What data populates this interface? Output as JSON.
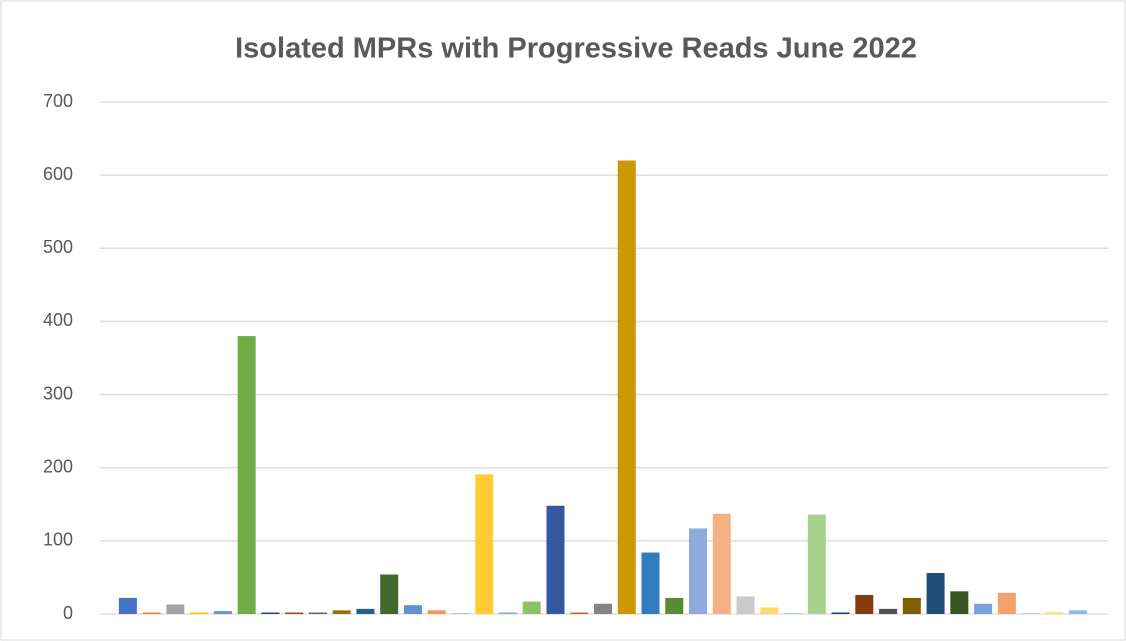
{
  "chart_data": {
    "type": "bar",
    "title": "Isolated MPRs with Progressive Reads June 2022",
    "categories": [
      null,
      null,
      null,
      null,
      null,
      null,
      null,
      null,
      null,
      null,
      null,
      null,
      null,
      null,
      null,
      null,
      null,
      null,
      null,
      null,
      null,
      null,
      null,
      null,
      null,
      null,
      null,
      null,
      null,
      null,
      null,
      null,
      null,
      null,
      null,
      null,
      null,
      null,
      null,
      null,
      null
    ],
    "values": [
      22,
      2,
      13,
      2,
      4,
      380,
      2,
      2,
      2,
      5,
      7,
      54,
      12,
      5,
      1,
      191,
      2,
      17,
      148,
      2,
      14,
      620,
      84,
      22,
      117,
      137,
      24,
      9,
      1,
      136,
      2,
      26,
      7,
      22,
      56,
      31,
      14,
      29,
      1,
      3,
      5
    ],
    "colors": [
      "#4472c4",
      "#ed7d31",
      "#a5a5a5",
      "#ffc000",
      "#5b9bd5",
      "#70ad47",
      "#264478",
      "#9e480e",
      "#636363",
      "#997300",
      "#255e91",
      "#43682b",
      "#698ed0",
      "#f1975a",
      "#b7b7b7",
      "#ffcd33",
      "#7cafdd",
      "#8cc168",
      "#335aa1",
      "#d26012",
      "#848484",
      "#cc9a00",
      "#327dc2",
      "#5a8a39",
      "#8faadc",
      "#f4b183",
      "#c9c9c9",
      "#ffd966",
      "#9dc3e6",
      "#a9d18e",
      "#203864",
      "#843c0c",
      "#525252",
      "#7f6000",
      "#1f4e79",
      "#375623",
      "#7aa0de",
      "#f4a16a",
      "#c0c0c0",
      "#ffe07a",
      "#8db8e8"
    ],
    "ylim": [
      0,
      700
    ],
    "yticks": [
      0,
      100,
      200,
      300,
      400,
      500,
      600,
      700
    ],
    "grid": true
  }
}
